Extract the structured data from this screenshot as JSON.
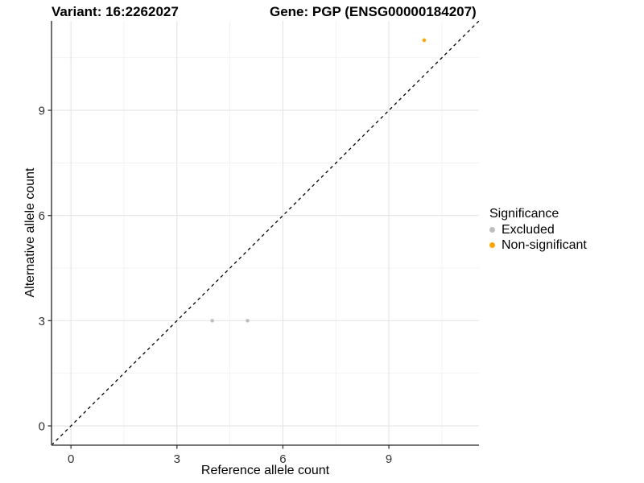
{
  "header": {
    "variant_title": "Variant: 16:2262027",
    "gene_title": "Gene: PGP (ENSG00000184207)"
  },
  "chart_data": {
    "type": "scatter",
    "title_left": "Variant: 16:2262027",
    "title_right": "Gene: PGP (ENSG00000184207)",
    "xlabel": "Reference allele count",
    "ylabel": "Alternative allele count",
    "xlim": [
      -0.55,
      11.55
    ],
    "ylim": [
      -0.55,
      11.55
    ],
    "x_ticks": [
      0,
      3,
      6,
      9
    ],
    "y_ticks": [
      0,
      3,
      6,
      9
    ],
    "x_minor_ticks": [
      1.5,
      4.5,
      7.5,
      10.5
    ],
    "y_minor_ticks": [
      1.5,
      4.5,
      7.5,
      10.5
    ],
    "grid": true,
    "series": [
      {
        "name": "Excluded",
        "color": "#BEBEBE",
        "point_radius": 2.3,
        "points": [
          [
            4,
            3
          ],
          [
            5,
            3
          ]
        ]
      },
      {
        "name": "Non-significant",
        "color": "#FFA500",
        "point_radius": 2.3,
        "points": [
          [
            10,
            11
          ]
        ]
      }
    ],
    "reference_line": {
      "kind": "identity",
      "slope": 1,
      "intercept": 0,
      "style": "dashed",
      "color": "#000000"
    },
    "legend": {
      "title": "Significance",
      "position": "right",
      "entries": [
        {
          "label": "Excluded",
          "color": "#BEBEBE"
        },
        {
          "label": "Non-significant",
          "color": "#FFA500"
        }
      ]
    },
    "style": {
      "panel_background": "#FFFFFF",
      "major_grid_color": "#E4E4E4",
      "minor_grid_color": "#F0F0F0",
      "axis_line_color": "#4A4A4A",
      "tick_color": "#333333",
      "tick_label_color": "#333333"
    }
  }
}
